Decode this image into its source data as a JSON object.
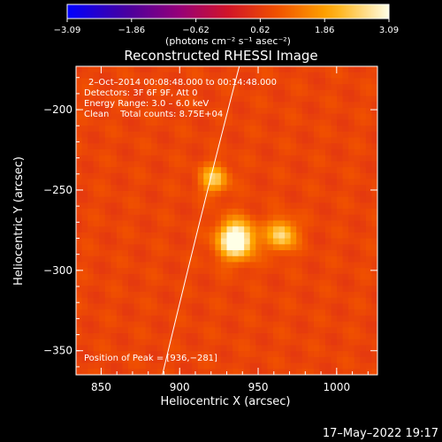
{
  "chart_data": {
    "type": "heatmap",
    "title": "Reconstructed RHESSI Image",
    "xlabel": "Heliocentric X (arcsec)",
    "ylabel": "Heliocentric Y (arcsec)",
    "xlim": [
      834,
      1026
    ],
    "ylim": [
      -365,
      -173
    ],
    "x_ticks": [
      850,
      900,
      950,
      1000
    ],
    "y_ticks": [
      -200,
      -250,
      -300,
      -350
    ],
    "colorbar": {
      "min": -3.09,
      "max": 3.09,
      "ticks": [
        "−3.09",
        "−1.86",
        "−0.62",
        "0.62",
        "1.86",
        "3.09"
      ],
      "label": "(photons cm⁻² s⁻¹ asec⁻²)",
      "colormap": "fire"
    },
    "annotations": {
      "time_range": "2–Oct–2014 00:08:48.000 to 00:14:48.000",
      "detectors": "Detectors: 3F 6F 9F, Att 0",
      "energy": "Energy Range: 3.0 – 6.0 keV",
      "method": "Clean    Total counts: 8.75E+04",
      "peak": "Position of Peak = [936,−281]"
    },
    "sources": [
      {
        "x": 936,
        "y": -281,
        "intensity": 3.09,
        "sigma": 8
      },
      {
        "x": 965,
        "y": -278,
        "intensity": 1.9,
        "sigma": 6.5
      },
      {
        "x": 922,
        "y": -243,
        "intensity": 1.7,
        "sigma": 6
      }
    ],
    "background_level": 0.75,
    "limb_curve": [
      [
        889,
        -365
      ],
      [
        905,
        -300
      ],
      [
        920,
        -240
      ],
      [
        938,
        -173
      ]
    ]
  },
  "footer": {
    "date": "17–May–2022 19:17"
  }
}
